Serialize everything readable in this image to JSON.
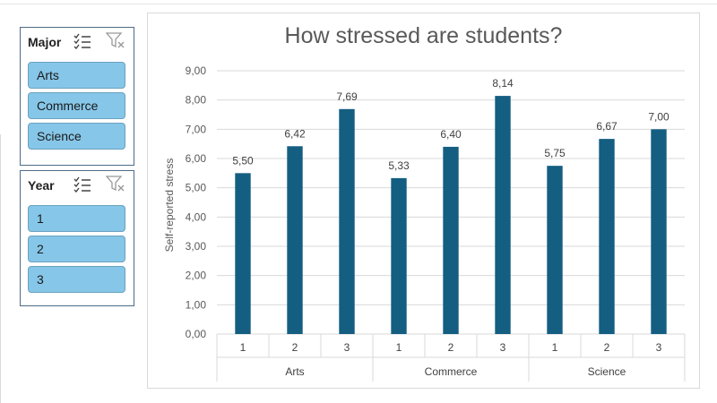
{
  "slicers": [
    {
      "title": "Major",
      "items": [
        "Arts",
        "Commerce",
        "Science"
      ]
    },
    {
      "title": "Year",
      "items": [
        "1",
        "2",
        "3"
      ]
    }
  ],
  "icons": {
    "multiselect": "multi-select-icon",
    "clear": "clear-filter-icon"
  },
  "colors": {
    "bar": "#145e82",
    "slicer_item": "#86c6e8",
    "slicer_border": "#4d6c86"
  },
  "chart_data": {
    "type": "bar",
    "title": "How stressed are students?",
    "ylabel": "Self-reported stress",
    "xlabel": "",
    "ylim": [
      0,
      9
    ],
    "yticks": [
      "0,00",
      "1,00",
      "2,00",
      "3,00",
      "4,00",
      "5,00",
      "6,00",
      "7,00",
      "8,00",
      "9,00"
    ],
    "grid": true,
    "legend": "none",
    "groups": [
      "Arts",
      "Commerce",
      "Science"
    ],
    "categories": [
      "1",
      "2",
      "3",
      "1",
      "2",
      "3",
      "1",
      "2",
      "3"
    ],
    "values": [
      5.5,
      6.42,
      7.69,
      5.33,
      6.4,
      8.14,
      5.75,
      6.67,
      7.0
    ],
    "value_labels": [
      "5,50",
      "6,42",
      "7,69",
      "5,33",
      "6,40",
      "8,14",
      "5,75",
      "6,67",
      "7,00"
    ]
  }
}
